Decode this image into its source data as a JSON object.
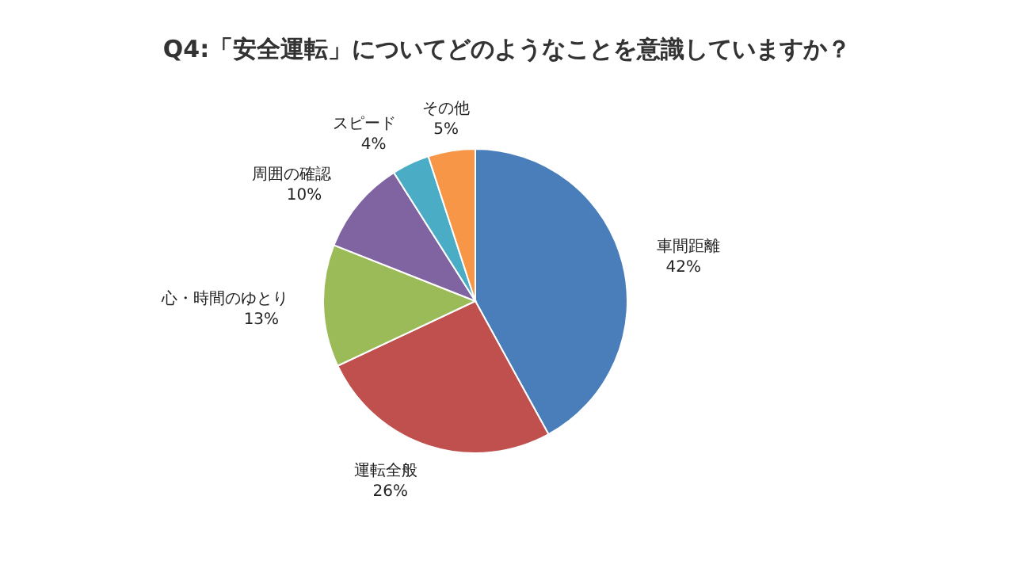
{
  "chart_data": {
    "type": "pie",
    "title": "Q4:「安全運転」についてどのようなことを意識していますか？",
    "categories": [
      "車間距離",
      "運転全般",
      "心・時間のゆとり",
      "周囲の確認",
      "スピード",
      "その他"
    ],
    "values": [
      42,
      26,
      13,
      10,
      4,
      5
    ],
    "value_labels": [
      "42%",
      "26%",
      "13%",
      "10%",
      "4%",
      "5%"
    ],
    "colors": [
      "#4a7ebb",
      "#c0504d",
      "#9bbb59",
      "#8064a2",
      "#4bacc6",
      "#f79646"
    ],
    "legend": false
  }
}
